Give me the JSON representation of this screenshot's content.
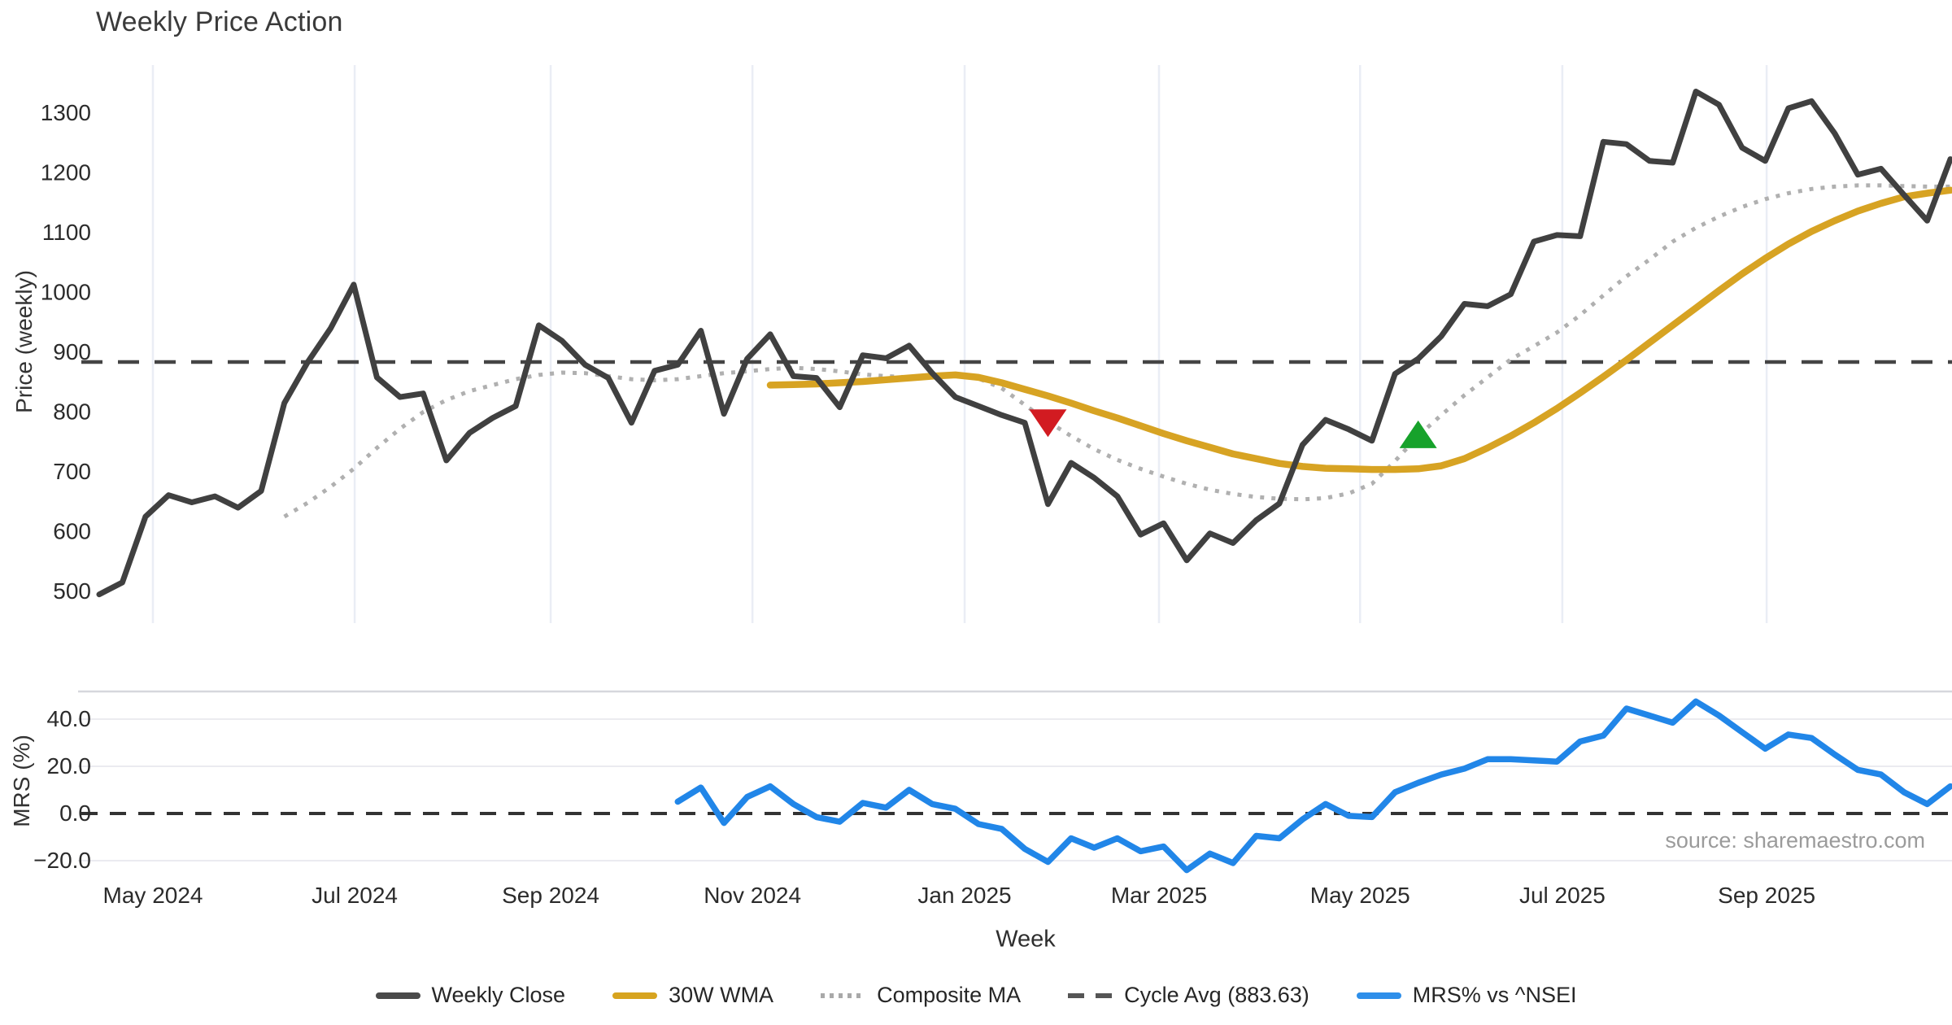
{
  "title": "Weekly Price Action",
  "source_note": "source: sharemaestro.com",
  "xlabel": "Week",
  "colors": {
    "weekly_close": "#404040",
    "wma30": "#d7a323",
    "composite_ma": "#b0b0b0",
    "cycle_avg": "#454545",
    "mrs": "#2186e8",
    "sell_marker": "#d21b21",
    "buy_marker": "#17a22b",
    "tick_text": "#2b2b2b",
    "gridline": "#eaedf5",
    "panel_border": "#d6d7dd"
  },
  "legend": [
    {
      "label": "Weekly Close",
      "color": "#4a4a4a",
      "style": "solid"
    },
    {
      "label": "30W WMA",
      "color": "#d7a41f",
      "style": "solid"
    },
    {
      "label": "Composite MA",
      "color": "#a9a9a9",
      "style": "dotted"
    },
    {
      "label": "Cycle Avg (883.63)",
      "color": "#555555",
      "style": "dashed"
    },
    {
      "label": "MRS% vs ^NSEI",
      "color": "#2e8fea",
      "style": "solid"
    }
  ],
  "chart_data": [
    {
      "type": "line",
      "panel": "price",
      "title": "Weekly Price Action",
      "ylabel": "Price (weekly)",
      "xlabel": "Week",
      "ylim": [
        460,
        1380
      ],
      "grid": "vertical-months",
      "ytick_values": [
        500,
        600,
        700,
        800,
        900,
        1000,
        1100,
        1200,
        1300
      ],
      "ytick_labels": [
        "500",
        "600",
        "700",
        "800",
        "900",
        "1000",
        "1100",
        "1200",
        "1300"
      ],
      "x_tick_labels": [
        "May 2024",
        "Jul 2024",
        "Sep 2024",
        "Nov 2024",
        "Jan 2025",
        "Mar 2025",
        "May 2025",
        "Jul 2025",
        "Sep 2025"
      ],
      "x_tick_weeks": [
        2.32,
        11.04,
        19.51,
        28.23,
        37.4,
        45.8,
        54.49,
        63.23,
        72.06
      ],
      "cycle_avg": {
        "value": 883.63,
        "label": "Cycle Avg (883.63)",
        "style": "dashed"
      },
      "series": [
        {
          "name": "Weekly Close",
          "style": "solid",
          "color": "#404040",
          "width": 7,
          "start_week": 0,
          "values": [
            495,
            515,
            625,
            661,
            649,
            659,
            640,
            668,
            815,
            883,
            940,
            1013,
            858,
            825,
            831,
            719,
            765,
            790,
            810,
            945,
            919,
            879,
            857,
            782,
            869,
            879,
            936,
            797,
            889,
            930,
            860,
            857,
            808,
            895,
            890,
            911,
            865,
            825,
            810,
            795,
            782,
            646,
            715,
            690,
            659,
            595,
            614,
            552,
            597,
            581,
            619,
            647,
            745,
            787,
            771,
            752,
            864,
            889,
            927,
            981,
            977,
            997,
            1085,
            1096,
            1094,
            1252,
            1248,
            1220,
            1217,
            1336,
            1314,
            1242,
            1220,
            1308,
            1320,
            1266,
            1197,
            1207,
            1163,
            1120,
            1223
          ]
        },
        {
          "name": "30W WMA",
          "style": "solid",
          "color": "#d7a323",
          "width": 8.5,
          "start_week": 29,
          "values": [
            845,
            846,
            847,
            849,
            851,
            854,
            857,
            860,
            862,
            858,
            849,
            838,
            827,
            815,
            802,
            790,
            777,
            764,
            752,
            741,
            730,
            722,
            714,
            709,
            706,
            705,
            704,
            704,
            705,
            710,
            722,
            740,
            760,
            782,
            806,
            832,
            859,
            887,
            916,
            945,
            974,
            1003,
            1031,
            1057,
            1081,
            1102,
            1120,
            1136,
            1149,
            1160,
            1166,
            1171
          ]
        },
        {
          "name": "Composite MA",
          "style": "dotted",
          "color": "#b0b0b0",
          "width": 5,
          "start_week": 8,
          "values": [
            625,
            648,
            675,
            705,
            740,
            772,
            800,
            820,
            835,
            845,
            855,
            862,
            866,
            865,
            860,
            855,
            853,
            855,
            860,
            865,
            868,
            872,
            874,
            872,
            868,
            863,
            860,
            858,
            860,
            862,
            856,
            840,
            812,
            784,
            760,
            738,
            720,
            705,
            692,
            680,
            670,
            663,
            658,
            655,
            654,
            656,
            664,
            680,
            718,
            760,
            795,
            828,
            858,
            888,
            910,
            933,
            962,
            995,
            1027,
            1055,
            1085,
            1108,
            1127,
            1143,
            1156,
            1166,
            1173,
            1177,
            1179,
            1179,
            1178,
            1177,
            1177
          ]
        }
      ],
      "markers": [
        {
          "name": "sell-signal",
          "shape": "triangle-down",
          "color": "#d21b21",
          "week": 41,
          "value": 784
        },
        {
          "name": "buy-signal",
          "shape": "triangle-up",
          "color": "#17a22b",
          "week": 57,
          "value": 760
        }
      ]
    },
    {
      "type": "line",
      "panel": "mrs",
      "ylabel": "MRS (%)",
      "ylim": [
        -28,
        52
      ],
      "grid": "horizontal",
      "ytick_values": [
        40,
        20,
        0,
        -20
      ],
      "ytick_labels": [
        "40.0",
        "20.0",
        "0.0",
        "−20.0"
      ],
      "zero_line": {
        "value": 0.0,
        "style": "dashed"
      },
      "series": [
        {
          "name": "MRS% vs ^NSEI",
          "style": "solid",
          "color": "#2186e8",
          "width": 7.5,
          "start_week": 25,
          "values": [
            5,
            11,
            -4,
            7,
            11.5,
            4,
            -1.5,
            -3.5,
            4.5,
            2.5,
            10,
            4,
            2,
            -4.5,
            -6.5,
            -15,
            -20.5,
            -10.5,
            -14.5,
            -10.5,
            -16,
            -14,
            -24,
            -17,
            -21,
            -9.5,
            -10.5,
            -2.5,
            4,
            -1,
            -1.5,
            9,
            13,
            16.5,
            19,
            23,
            23,
            22.5,
            22,
            30.5,
            33,
            44.5,
            41.5,
            38.5,
            47.5,
            41.5,
            34.5,
            27.5,
            33.5,
            32,
            25,
            18.5,
            16.5,
            9,
            4,
            11.5
          ]
        }
      ]
    }
  ]
}
